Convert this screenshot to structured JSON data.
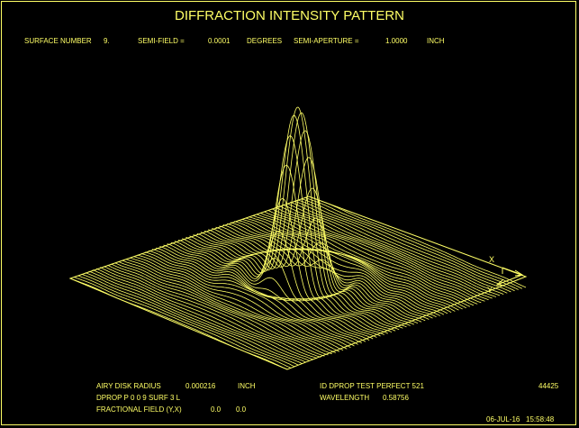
{
  "title": "DIFFRACTION INTENSITY PATTERN",
  "header": {
    "surface_label": "SURFACE NUMBER",
    "surface_value": "9.",
    "semi_field_label": "SEMI-FIELD =",
    "semi_field_value": "0.0001",
    "semi_field_units": "DEGREES",
    "semi_aperture_label": "SEMI-APERTURE =",
    "semi_aperture_value": "1.0000",
    "semi_aperture_units": "INCH"
  },
  "axes": {
    "x_label": "X",
    "y_label": "Y"
  },
  "footer": {
    "airy_label": "AIRY DISK RADIUS",
    "airy_value": "0.000216",
    "airy_units": "INCH",
    "dprop_line": "DPROP P 0 0 9 SURF 3 L",
    "field_label": "FRACTIONAL FIELD (Y,X)",
    "field_y": "0.0",
    "field_x": "0.0",
    "id_line": "ID DPROP TEST PERFECT 521",
    "id_number": "44425",
    "wavelength_label": "WAVELENGTH",
    "wavelength_value": "0.58756",
    "date": "06-JUL-16",
    "time": "15:58:48"
  },
  "colors": {
    "foreground": "#ffff66",
    "background": "#000000"
  }
}
